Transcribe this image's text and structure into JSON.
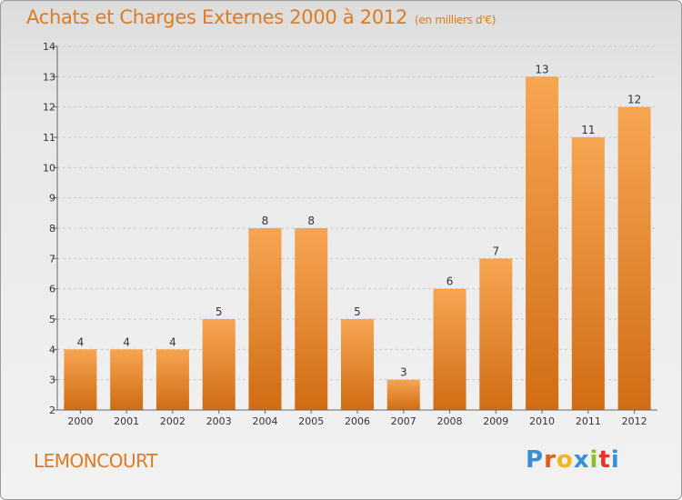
{
  "title": "Achats et Charges Externes 2000 à 2012",
  "unit": "(en milliers d'€)",
  "commune": "LEMONCOURT",
  "logo": {
    "letters": [
      "P",
      "r",
      "o",
      "x",
      "i",
      "t",
      "i"
    ],
    "colors": [
      "#3a8fd6",
      "#e85a1a",
      "#f2b51c",
      "#3a8fd6",
      "#8cbf2a",
      "#e8332a",
      "#3a8fd6"
    ]
  },
  "chart_data": {
    "type": "bar",
    "categories": [
      "2000",
      "2001",
      "2002",
      "2003",
      "2004",
      "2005",
      "2006",
      "2007",
      "2008",
      "2009",
      "2010",
      "2011",
      "2012"
    ],
    "values": [
      4,
      4,
      4,
      5,
      8,
      8,
      5,
      3,
      6,
      7,
      13,
      11,
      12
    ],
    "ylim": [
      2,
      14
    ],
    "yticks": [
      2,
      3,
      4,
      5,
      6,
      7,
      8,
      9,
      10,
      11,
      12,
      13,
      14
    ],
    "bar_color_top": "#f7a552",
    "bar_color_bottom": "#d06c14",
    "grid": true
  }
}
